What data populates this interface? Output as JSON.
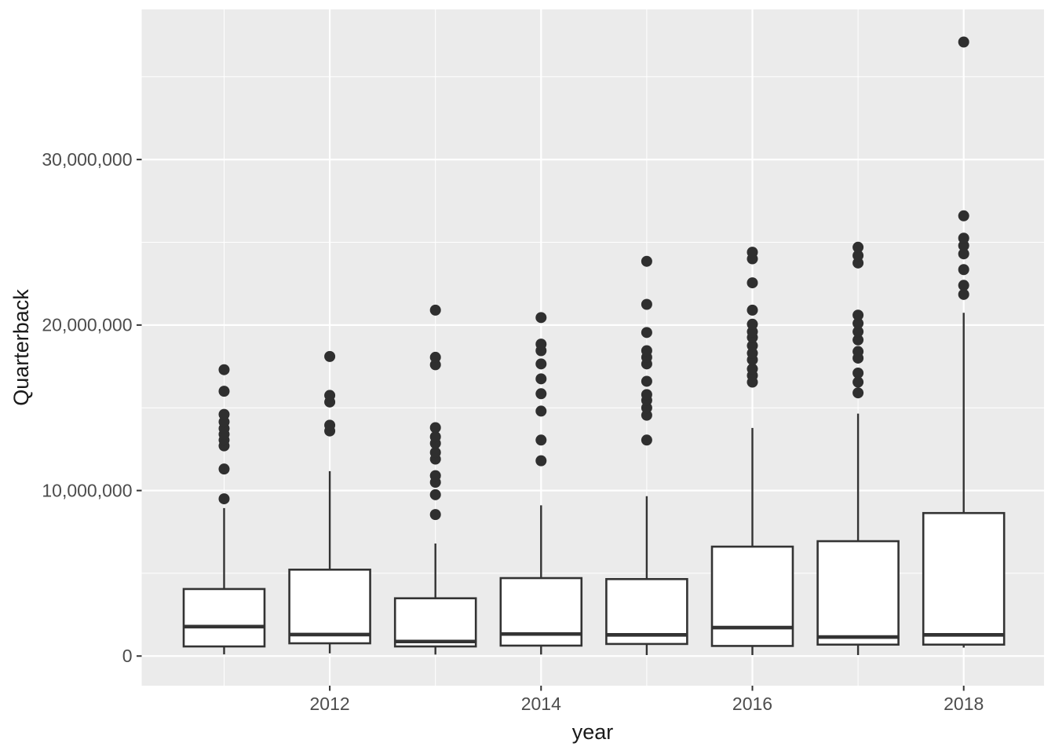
{
  "figure": {
    "background": "#FFFFFF",
    "panel_background": "#EBEBEB",
    "grid_color": "#FFFFFF",
    "box_fill": "#FFFFFF",
    "box_stroke": "#333333",
    "outlier_color": "#2F2F2F",
    "tick_label_color": "#4D4D4D",
    "axis_title_color": "#1A1A1A"
  },
  "chart_data": {
    "type": "boxplot",
    "title": "",
    "xlabel": "year",
    "ylabel": "Quarterback",
    "legend": "none",
    "grid": true,
    "x_tick_labels": [
      "2012",
      "2014",
      "2016",
      "2018"
    ],
    "x_ticks_years": [
      2012,
      2014,
      2016,
      2018
    ],
    "y_tick_labels": [
      "0",
      "10,000,000",
      "20,000,000",
      "30,000,000"
    ],
    "y_ticks": [
      0,
      10000000,
      20000000,
      30000000
    ],
    "y_minor_ticks": [
      5000000,
      15000000,
      25000000,
      35000000
    ],
    "xlim": [
      2010.22,
      2018.76
    ],
    "ylim": [
      -1790000,
      39070000
    ],
    "box_width_years": 0.765,
    "series": [
      {
        "year": 2011,
        "whisker_low": 100000,
        "q1": 580000,
        "median": 1780000,
        "q3": 4050000,
        "whisker_high": 8940000,
        "outliers": [
          9500000,
          11300000,
          12700000,
          13050000,
          13400000,
          13750000,
          14150000,
          14600000,
          16000000,
          17300000
        ]
      },
      {
        "year": 2012,
        "whisker_low": 160000,
        "q1": 770000,
        "median": 1300000,
        "q3": 5220000,
        "whisker_high": 11170000,
        "outliers": [
          13600000,
          13950000,
          15350000,
          15750000,
          18100000
        ]
      },
      {
        "year": 2013,
        "whisker_low": 90000,
        "q1": 580000,
        "median": 880000,
        "q3": 3490000,
        "whisker_high": 6800000,
        "outliers": [
          8550000,
          9750000,
          10500000,
          10900000,
          11900000,
          12300000,
          12850000,
          13250000,
          13800000,
          17600000,
          18050000,
          20900000
        ]
      },
      {
        "year": 2014,
        "whisker_low": 90000,
        "q1": 630000,
        "median": 1330000,
        "q3": 4710000,
        "whisker_high": 9110000,
        "outliers": [
          11800000,
          13050000,
          14800000,
          15850000,
          16750000,
          17650000,
          18450000,
          18850000,
          20450000
        ]
      },
      {
        "year": 2015,
        "whisker_low": 60000,
        "q1": 730000,
        "median": 1280000,
        "q3": 4650000,
        "whisker_high": 9660000,
        "outliers": [
          13050000,
          14550000,
          15000000,
          15450000,
          15800000,
          16600000,
          17650000,
          18050000,
          18450000,
          19550000,
          21250000,
          23850000
        ]
      },
      {
        "year": 2016,
        "whisker_low": 60000,
        "q1": 610000,
        "median": 1720000,
        "q3": 6610000,
        "whisker_high": 13780000,
        "outliers": [
          16550000,
          16950000,
          17350000,
          17900000,
          18300000,
          18750000,
          19250000,
          19600000,
          20050000,
          20900000,
          22550000,
          24000000,
          24400000
        ]
      },
      {
        "year": 2017,
        "whisker_low": 60000,
        "q1": 690000,
        "median": 1150000,
        "q3": 6940000,
        "whisker_high": 14650000,
        "outliers": [
          15900000,
          16550000,
          17100000,
          18000000,
          18400000,
          19100000,
          19600000,
          20100000,
          20600000,
          23750000,
          24200000,
          24700000
        ]
      },
      {
        "year": 2018,
        "whisker_low": 510000,
        "q1": 690000,
        "median": 1280000,
        "q3": 8640000,
        "whisker_high": 20740000,
        "outliers": [
          21850000,
          22400000,
          23350000,
          24300000,
          24800000,
          25250000,
          26600000,
          37100000
        ]
      }
    ]
  }
}
